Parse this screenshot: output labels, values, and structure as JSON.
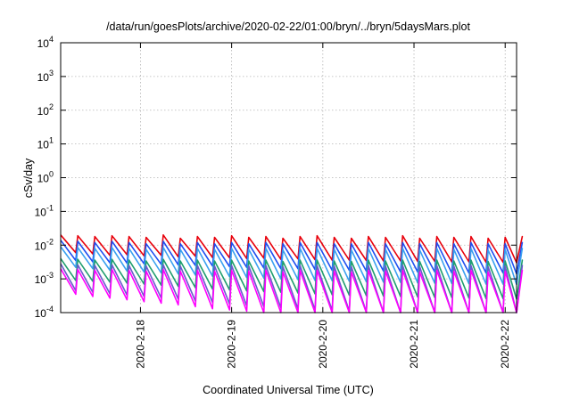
{
  "chart_data": {
    "type": "line",
    "title": "/data/run/goesPlots/archive/2020-02-22/01:00/bryn/../bryn/5daysMars.plot",
    "xlabel": "Coordinated Universal Time (UTC)",
    "ylabel": "cSv/day",
    "y_scale": "log",
    "ylim": [
      0.0001,
      10000
    ],
    "y_ticks": [
      {
        "base": "10",
        "exp": "4"
      },
      {
        "base": "10",
        "exp": "3"
      },
      {
        "base": "10",
        "exp": "2"
      },
      {
        "base": "10",
        "exp": "1"
      },
      {
        "base": "10",
        "exp": "0"
      },
      {
        "base": "10",
        "exp": "-1"
      },
      {
        "base": "10",
        "exp": "-2"
      },
      {
        "base": "10",
        "exp": "-3"
      },
      {
        "base": "10",
        "exp": "-4"
      }
    ],
    "xlim": [
      "2020-02-17 03:00",
      "2020-02-22 03:00"
    ],
    "x_ticks": [
      "2020-2-18",
      "2020-2-19",
      "2020-2-20",
      "2020-2-21",
      "2020-2-22"
    ],
    "grid": true,
    "sawtooth_period_hours": 4.5,
    "series": [
      {
        "color": "#e8000b",
        "peaks": [
          0.02,
          0.019,
          0.018,
          0.019,
          0.018,
          0.017,
          0.02,
          0.016,
          0.018,
          0.017,
          0.019,
          0.017,
          0.018,
          0.016,
          0.018,
          0.019,
          0.017,
          0.016,
          0.018,
          0.017,
          0.019,
          0.016,
          0.018,
          0.017,
          0.018,
          0.016,
          0.017,
          0.018
        ],
        "troughs": [
          0.006,
          0.0055,
          0.005,
          0.0052,
          0.0048,
          0.005,
          0.0045,
          0.0047,
          0.0043,
          0.0042,
          0.004,
          0.0041,
          0.0038,
          0.0039,
          0.0037,
          0.0036,
          0.0036,
          0.0035,
          0.0034,
          0.0034,
          0.0033,
          0.0033,
          0.0032,
          0.0032,
          0.0031,
          0.0031,
          0.003,
          0.003
        ]
      },
      {
        "color": "#1f4ef0",
        "peaks": [
          0.014,
          0.013,
          0.012,
          0.013,
          0.012,
          0.011,
          0.013,
          0.011,
          0.012,
          0.011,
          0.012,
          0.011,
          0.012,
          0.011,
          0.012,
          0.012,
          0.011,
          0.011,
          0.012,
          0.011,
          0.012,
          0.011,
          0.012,
          0.011,
          0.012,
          0.011,
          0.011,
          0.012
        ],
        "troughs": [
          0.0035,
          0.0032,
          0.003,
          0.0029,
          0.0028,
          0.0027,
          0.0026,
          0.0025,
          0.0024,
          0.0023,
          0.0022,
          0.0021,
          0.002,
          0.002,
          0.0019,
          0.0018,
          0.0018,
          0.0017,
          0.0017,
          0.0016,
          0.0016,
          0.0016,
          0.0015,
          0.0015,
          0.0015,
          0.0015,
          0.0014,
          0.0014
        ]
      },
      {
        "color": "#3aa0f0",
        "peaks": [
          0.009,
          0.0085,
          0.008,
          0.0085,
          0.008,
          0.0075,
          0.0085,
          0.0075,
          0.008,
          0.0075,
          0.008,
          0.0075,
          0.008,
          0.0072,
          0.008,
          0.008,
          0.0075,
          0.0072,
          0.008,
          0.0075,
          0.008,
          0.0072,
          0.008,
          0.0075,
          0.008,
          0.0072,
          0.0075,
          0.008
        ],
        "troughs": [
          0.0022,
          0.002,
          0.0018,
          0.0017,
          0.0016,
          0.0015,
          0.0014,
          0.0013,
          0.0012,
          0.00115,
          0.0011,
          0.00105,
          0.001,
          0.00095,
          0.0009,
          0.00088,
          0.00085,
          0.00082,
          0.0008,
          0.00078,
          0.00076,
          0.00075,
          0.00073,
          0.00072,
          0.0007,
          0.0007,
          0.00068,
          0.00067
        ]
      },
      {
        "color": "#1f9e6e",
        "peaks": [
          0.004,
          0.0038,
          0.0036,
          0.0038,
          0.0036,
          0.0034,
          0.0038,
          0.0034,
          0.0036,
          0.0034,
          0.0036,
          0.0034,
          0.0036,
          0.0033,
          0.0036,
          0.0036,
          0.0034,
          0.0033,
          0.0036,
          0.0034,
          0.0036,
          0.0033,
          0.0036,
          0.0034,
          0.0036,
          0.0033,
          0.0034,
          0.0036
        ],
        "troughs": [
          0.0009,
          0.00085,
          0.0008,
          0.00075,
          0.0007,
          0.00065,
          0.0006,
          0.00055,
          0.0005,
          0.00047,
          0.00044,
          0.00042,
          0.0004,
          0.00038,
          0.00036,
          0.00034,
          0.00033,
          0.00032,
          0.00031,
          0.0003,
          0.00029,
          0.00028,
          0.00028,
          0.00027,
          0.00026,
          0.00026,
          0.00025,
          0.00025
        ]
      },
      {
        "color": "#6a5acd",
        "peaks": [
          0.0028,
          0.0026,
          0.0025,
          0.0026,
          0.0025,
          0.0024,
          0.0026,
          0.0024,
          0.0025,
          0.0024,
          0.0025,
          0.0024,
          0.0025,
          0.0023,
          0.0025,
          0.0025,
          0.0024,
          0.0023,
          0.0025,
          0.0024,
          0.0025,
          0.0023,
          0.0025,
          0.0024,
          0.0025,
          0.0023,
          0.0024,
          0.0025
        ],
        "troughs": [
          0.00045,
          0.0004,
          0.00036,
          0.00033,
          0.0003,
          0.00027,
          0.00025,
          0.00022,
          0.0002,
          0.00018,
          0.00016,
          0.00015,
          0.00014,
          0.00013,
          0.00012,
          0.000115,
          0.00011,
          0.000105,
          0.0001,
          0.0001,
          0.0001,
          0.0001,
          0.0001,
          0.0001,
          0.0001,
          0.0001,
          0.0001,
          0.0001
        ]
      },
      {
        "color": "#ff00ff",
        "peaks": [
          0.002,
          0.0019,
          0.0018,
          0.0019,
          0.0018,
          0.0017,
          0.0019,
          0.0017,
          0.0018,
          0.0017,
          0.0018,
          0.0017,
          0.0018,
          0.0016,
          0.0018,
          0.0018,
          0.0017,
          0.0016,
          0.0018,
          0.0017,
          0.0018,
          0.0016,
          0.0018,
          0.0017,
          0.0018,
          0.0016,
          0.0017,
          0.0018
        ],
        "troughs": [
          0.00035,
          0.0003,
          0.00027,
          0.00024,
          0.00021,
          0.00019,
          0.00017,
          0.00015,
          0.00013,
          0.00012,
          0.00011,
          0.0001,
          0.0001,
          0.0001,
          0.0001,
          0.0001,
          0.0001,
          0.0001,
          0.0001,
          0.0001,
          0.0001,
          0.0001,
          0.0001,
          0.0001,
          0.0001,
          0.0001,
          0.0001,
          0.0001
        ]
      }
    ]
  }
}
